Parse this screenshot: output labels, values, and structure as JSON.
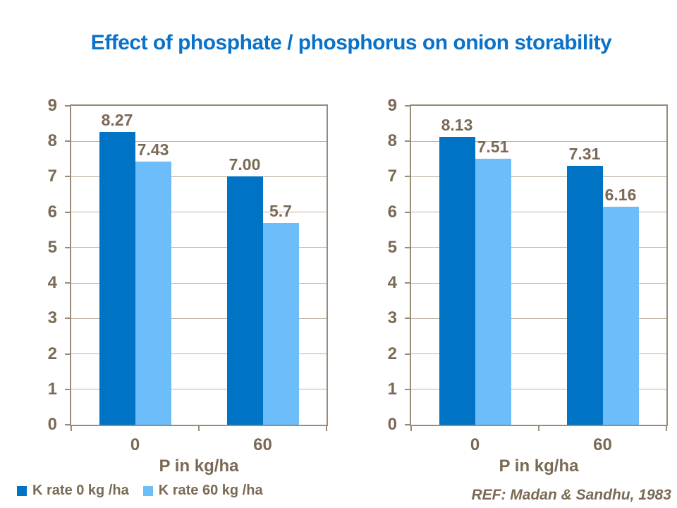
{
  "title": "Effect of phosphate / phosphorus on onion storability",
  "reference": "REF: Madan & Sandhu, 1983",
  "colors": {
    "title": "#0A72C8",
    "series_dark": "#0173C4",
    "series_light": "#6CBDFA",
    "axis": "#9A8A78",
    "gridline": "#BFB2A0",
    "label_text": "#7A6A55"
  },
  "legend": {
    "position": "bottom-left",
    "items": [
      {
        "label": "K rate 0 kg /ha",
        "color": "#0173C4"
      },
      {
        "label": "K rate 60 kg /ha",
        "color": "#6CBDFA"
      }
    ]
  },
  "chart_data": [
    {
      "type": "bar",
      "title": "",
      "categories": [
        "0",
        "60"
      ],
      "series": [
        {
          "name": "K rate 0 kg /ha",
          "color": "#0173C4",
          "values": [
            8.27,
            7.0
          ],
          "labels": [
            "8.27",
            "7.00"
          ]
        },
        {
          "name": "K rate 60 kg /ha",
          "color": "#6CBDFA",
          "values": [
            7.43,
            5.7
          ],
          "labels": [
            "7.43",
            "5.7"
          ]
        }
      ],
      "xlabel": "P in kg/ha",
      "ylabel": "",
      "ylim": [
        0,
        9
      ],
      "yticks": [
        0,
        1,
        2,
        3,
        4,
        5,
        6,
        7,
        8,
        9
      ],
      "grid": true,
      "legend_position": "bottom-left"
    },
    {
      "type": "bar",
      "title": "",
      "categories": [
        "0",
        "60"
      ],
      "series": [
        {
          "name": "K rate 0 kg /ha",
          "color": "#0173C4",
          "values": [
            8.13,
            7.31
          ],
          "labels": [
            "8.13",
            "7.31"
          ]
        },
        {
          "name": "K rate 60 kg /ha",
          "color": "#6CBDFA",
          "values": [
            7.51,
            6.16
          ],
          "labels": [
            "7.51",
            "6.16"
          ]
        }
      ],
      "xlabel": "P in kg/ha",
      "ylabel": "",
      "ylim": [
        0,
        9
      ],
      "yticks": [
        0,
        1,
        2,
        3,
        4,
        5,
        6,
        7,
        8,
        9
      ],
      "grid": true,
      "legend_position": "none"
    }
  ]
}
